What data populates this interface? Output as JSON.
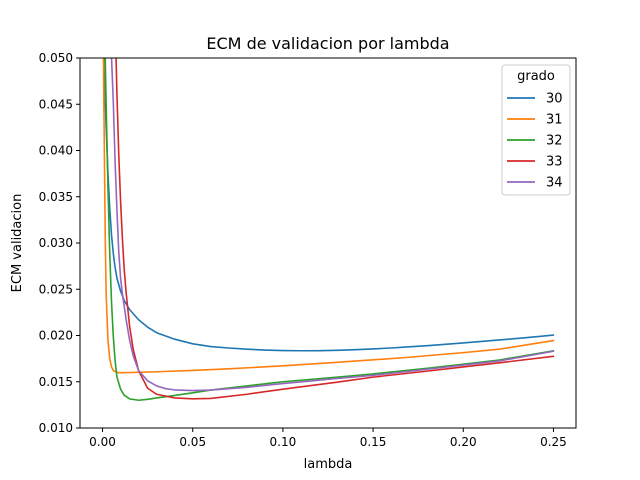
{
  "chart_data": {
    "type": "line",
    "title": "ECM de validacion por lambda",
    "xlabel": "lambda",
    "ylabel": "ECM validacion",
    "xlim": [
      -0.0125,
      0.2625
    ],
    "ylim": [
      0.01,
      0.05
    ],
    "xticks": [
      0.0,
      0.05,
      0.1,
      0.15,
      0.2,
      0.25
    ],
    "xtick_labels": [
      "0.00",
      "0.05",
      "0.10",
      "0.15",
      "0.20",
      "0.25"
    ],
    "yticks": [
      0.01,
      0.015,
      0.02,
      0.025,
      0.03,
      0.035,
      0.04,
      0.045,
      0.05
    ],
    "ytick_labels": [
      "0.010",
      "0.015",
      "0.020",
      "0.025",
      "0.030",
      "0.035",
      "0.040",
      "0.045",
      "0.050"
    ],
    "grid": false,
    "legend": {
      "title": "grado",
      "position": "top-right"
    },
    "series": [
      {
        "name": "30",
        "color": "#1f77b4",
        "x": [
          0.0007,
          0.001,
          0.002,
          0.003,
          0.004,
          0.005,
          0.006,
          0.007,
          0.008,
          0.01,
          0.012,
          0.015,
          0.02,
          0.025,
          0.03,
          0.04,
          0.05,
          0.06,
          0.07,
          0.08,
          0.09,
          0.1,
          0.11,
          0.12,
          0.13,
          0.14,
          0.15,
          0.16,
          0.17,
          0.18,
          0.19,
          0.2,
          0.21,
          0.22,
          0.23,
          0.24,
          0.25
        ],
        "y": [
          0.05,
          0.0475,
          0.0425,
          0.0375,
          0.0337,
          0.0308,
          0.0288,
          0.0273,
          0.0262,
          0.0248,
          0.0238,
          0.0228,
          0.0217,
          0.0209,
          0.0203,
          0.0196,
          0.0191,
          0.0188,
          0.01865,
          0.01852,
          0.01843,
          0.01837,
          0.01835,
          0.01836,
          0.0184,
          0.01847,
          0.01855,
          0.01865,
          0.01878,
          0.0189,
          0.01905,
          0.0192,
          0.01936,
          0.01952,
          0.01968,
          0.01986,
          0.02005
        ]
      },
      {
        "name": "31",
        "color": "#ff7f0e",
        "x": [
          0.0005,
          0.001,
          0.0015,
          0.002,
          0.003,
          0.004,
          0.005,
          0.006,
          0.008,
          0.01,
          0.015,
          0.02,
          0.03,
          0.05,
          0.07,
          0.1,
          0.13,
          0.15,
          0.17,
          0.2,
          0.22,
          0.25
        ],
        "y": [
          0.05,
          0.04,
          0.0305,
          0.0245,
          0.0195,
          0.0175,
          0.0166,
          0.0162,
          0.01601,
          0.01598,
          0.016,
          0.01602,
          0.01608,
          0.01622,
          0.0164,
          0.01672,
          0.0171,
          0.01737,
          0.01765,
          0.01815,
          0.01852,
          0.01945
        ]
      },
      {
        "name": "32",
        "color": "#2ca02c",
        "x": [
          0.0015,
          0.002,
          0.003,
          0.004,
          0.005,
          0.006,
          0.007,
          0.008,
          0.01,
          0.012,
          0.015,
          0.02,
          0.025,
          0.03,
          0.04,
          0.05,
          0.06,
          0.08,
          0.1,
          0.13,
          0.15,
          0.18,
          0.2,
          0.22,
          0.25
        ],
        "y": [
          0.05,
          0.045,
          0.036,
          0.0288,
          0.0235,
          0.0198,
          0.0172,
          0.0155,
          0.0142,
          0.01355,
          0.01315,
          0.013,
          0.0131,
          0.01325,
          0.01352,
          0.0138,
          0.0141,
          0.01455,
          0.015,
          0.0155,
          0.01585,
          0.01645,
          0.0169,
          0.01735,
          0.01835
        ]
      },
      {
        "name": "33",
        "color": "#d62728",
        "x": [
          0.0075,
          0.008,
          0.009,
          0.01,
          0.011,
          0.012,
          0.013,
          0.015,
          0.017,
          0.02,
          0.025,
          0.03,
          0.04,
          0.05,
          0.06,
          0.08,
          0.1,
          0.13,
          0.15,
          0.18,
          0.2,
          0.22,
          0.25
        ],
        "y": [
          0.05,
          0.046,
          0.0395,
          0.0345,
          0.0305,
          0.0272,
          0.0248,
          0.021,
          0.0185,
          0.0162,
          0.0143,
          0.01365,
          0.01325,
          0.01315,
          0.0132,
          0.01365,
          0.0142,
          0.01495,
          0.0155,
          0.01615,
          0.0166,
          0.01705,
          0.01775
        ]
      },
      {
        "name": "34",
        "color": "#9467bd",
        "x": [
          0.005,
          0.006,
          0.007,
          0.008,
          0.009,
          0.01,
          0.011,
          0.012,
          0.013,
          0.015,
          0.017,
          0.02,
          0.025,
          0.03,
          0.035,
          0.04,
          0.05,
          0.06,
          0.08,
          0.1,
          0.13,
          0.15,
          0.18,
          0.2,
          0.22,
          0.25
        ],
        "y": [
          0.05,
          0.045,
          0.0385,
          0.0335,
          0.029,
          0.0262,
          0.0245,
          0.0232,
          0.0218,
          0.0195,
          0.0178,
          0.0162,
          0.0151,
          0.01455,
          0.01425,
          0.01412,
          0.01405,
          0.0141,
          0.0144,
          0.0148,
          0.01535,
          0.0157,
          0.01635,
          0.0168,
          0.01725,
          0.0183
        ]
      }
    ]
  }
}
